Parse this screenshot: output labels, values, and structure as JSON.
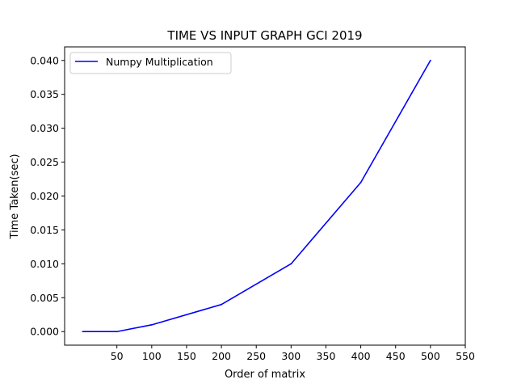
{
  "chart_data": {
    "type": "line",
    "title": "TIME VS INPUT GRAPH GCI 2019",
    "xlabel": "Order of matrix",
    "ylabel": "Time Taken(sec)",
    "xlim": [
      -25,
      550
    ],
    "ylim": [
      -0.002,
      0.042
    ],
    "xticks": [
      50,
      100,
      150,
      200,
      250,
      300,
      350,
      400,
      450,
      500,
      550
    ],
    "xtick_labels": [
      "50",
      "100",
      "150",
      "200",
      "250",
      "300",
      "350",
      "400",
      "450",
      "500",
      "550"
    ],
    "yticks": [
      0.0,
      0.005,
      0.01,
      0.015,
      0.02,
      0.025,
      0.03,
      0.035,
      0.04
    ],
    "ytick_labels": [
      "0.000",
      "0.005",
      "0.010",
      "0.015",
      "0.020",
      "0.025",
      "0.030",
      "0.035",
      "0.040"
    ],
    "grid": false,
    "legend_position": "top-left",
    "series": [
      {
        "name": "Numpy Multiplication",
        "color": "#0000ff",
        "x": [
          1,
          50,
          100,
          200,
          300,
          400,
          500
        ],
        "y": [
          0.0,
          0.0,
          0.001,
          0.004,
          0.01,
          0.022,
          0.04
        ]
      }
    ]
  }
}
